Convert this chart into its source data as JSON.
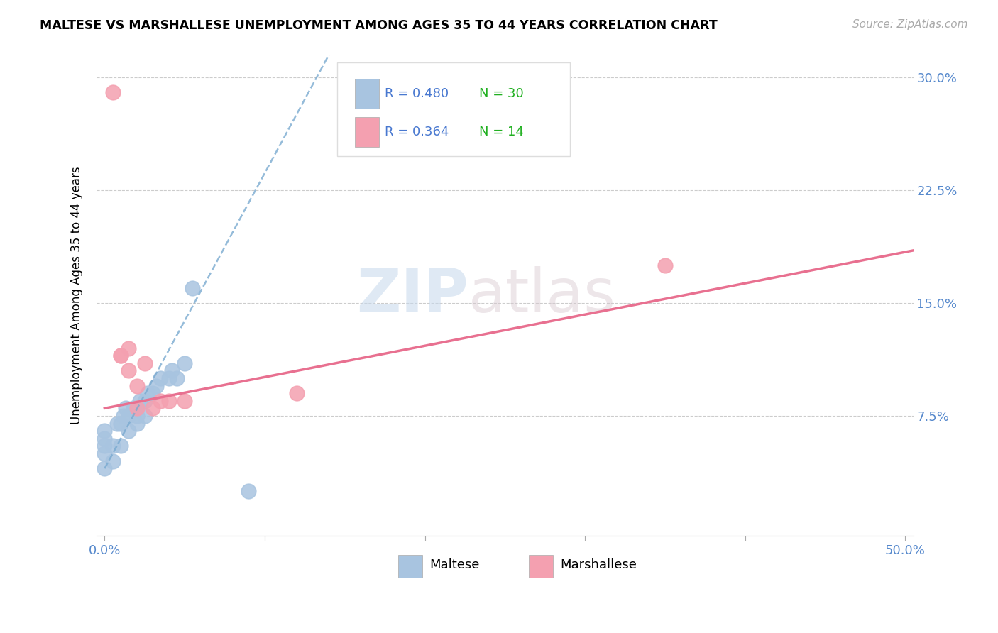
{
  "title": "MALTESE VS MARSHALLESE UNEMPLOYMENT AMONG AGES 35 TO 44 YEARS CORRELATION CHART",
  "source": "Source: ZipAtlas.com",
  "ylabel": "Unemployment Among Ages 35 to 44 years",
  "xlim": [
    -0.005,
    0.505
  ],
  "ylim": [
    -0.005,
    0.315
  ],
  "xticks": [
    0.0,
    0.1,
    0.2,
    0.3,
    0.4,
    0.5
  ],
  "yticks": [
    0.0,
    0.075,
    0.15,
    0.225,
    0.3
  ],
  "xticklabels_ends": [
    "0.0%",
    "50.0%"
  ],
  "yticklabels": [
    "",
    "7.5%",
    "15.0%",
    "22.5%",
    "30.0%"
  ],
  "maltese_color": "#a8c4e0",
  "marshallese_color": "#f4a0b0",
  "maltese_line_color": "#7aaad0",
  "marshallese_line_color": "#e87090",
  "maltese_R": 0.48,
  "maltese_N": 30,
  "marshallese_R": 0.364,
  "marshallese_N": 14,
  "legend_R_color": "#4878d0",
  "legend_N_color": "#20b020",
  "watermark_zip": "ZIP",
  "watermark_atlas": "atlas",
  "maltese_x": [
    0.0,
    0.0,
    0.0,
    0.0,
    0.0,
    0.005,
    0.005,
    0.008,
    0.01,
    0.01,
    0.012,
    0.013,
    0.015,
    0.015,
    0.018,
    0.02,
    0.02,
    0.022,
    0.025,
    0.025,
    0.027,
    0.03,
    0.032,
    0.035,
    0.04,
    0.042,
    0.045,
    0.05,
    0.055,
    0.09
  ],
  "maltese_y": [
    0.04,
    0.05,
    0.055,
    0.06,
    0.065,
    0.045,
    0.055,
    0.07,
    0.055,
    0.07,
    0.075,
    0.08,
    0.065,
    0.075,
    0.08,
    0.07,
    0.075,
    0.085,
    0.075,
    0.085,
    0.09,
    0.09,
    0.095,
    0.1,
    0.1,
    0.105,
    0.1,
    0.11,
    0.16,
    0.025
  ],
  "marshallese_x": [
    0.005,
    0.01,
    0.015,
    0.02,
    0.025,
    0.03,
    0.035,
    0.04,
    0.05,
    0.12,
    0.35,
    0.02,
    0.015,
    0.01
  ],
  "marshallese_y": [
    0.29,
    0.115,
    0.105,
    0.095,
    0.11,
    0.08,
    0.085,
    0.085,
    0.085,
    0.09,
    0.175,
    0.08,
    0.12,
    0.115
  ],
  "maltese_trend_x0": 0.0,
  "maltese_trend_y0": 0.04,
  "maltese_trend_x1": 0.14,
  "maltese_trend_y1": 0.315,
  "marshallese_trend_x0": 0.0,
  "marshallese_trend_y0": 0.08,
  "marshallese_trend_x1": 0.505,
  "marshallese_trend_y1": 0.185,
  "background_color": "#ffffff",
  "grid_color": "#cccccc"
}
